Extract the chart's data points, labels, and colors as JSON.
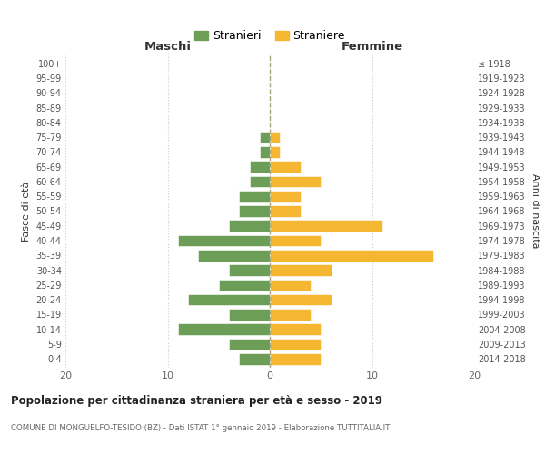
{
  "age_groups": [
    "0-4",
    "5-9",
    "10-14",
    "15-19",
    "20-24",
    "25-29",
    "30-34",
    "35-39",
    "40-44",
    "45-49",
    "50-54",
    "55-59",
    "60-64",
    "65-69",
    "70-74",
    "75-79",
    "80-84",
    "85-89",
    "90-94",
    "95-99",
    "100+"
  ],
  "birth_years": [
    "2014-2018",
    "2009-2013",
    "2004-2008",
    "1999-2003",
    "1994-1998",
    "1989-1993",
    "1984-1988",
    "1979-1983",
    "1974-1978",
    "1969-1973",
    "1964-1968",
    "1959-1963",
    "1954-1958",
    "1949-1953",
    "1944-1948",
    "1939-1943",
    "1934-1938",
    "1929-1933",
    "1924-1928",
    "1919-1923",
    "≤ 1918"
  ],
  "males": [
    3,
    4,
    9,
    4,
    8,
    5,
    4,
    7,
    9,
    4,
    3,
    3,
    2,
    2,
    1,
    1,
    0,
    0,
    0,
    0,
    0
  ],
  "females": [
    5,
    5,
    5,
    4,
    6,
    4,
    6,
    16,
    5,
    11,
    3,
    3,
    5,
    3,
    1,
    1,
    0,
    0,
    0,
    0,
    0
  ],
  "male_color": "#6d9e58",
  "female_color": "#f5b731",
  "bg_color": "#ffffff",
  "grid_color": "#cccccc",
  "title": "Popolazione per cittadinanza straniera per età e sesso - 2019",
  "subtitle": "COMUNE DI MONGUELFO-TESIDO (BZ) - Dati ISTAT 1° gennaio 2019 - Elaborazione TUTTITALIA.IT",
  "xlabel_left": "Maschi",
  "xlabel_right": "Femmine",
  "ylabel_left": "Fasce di età",
  "ylabel_right": "Anni di nascita",
  "legend_males": "Stranieri",
  "legend_females": "Straniere",
  "xlim": 20
}
